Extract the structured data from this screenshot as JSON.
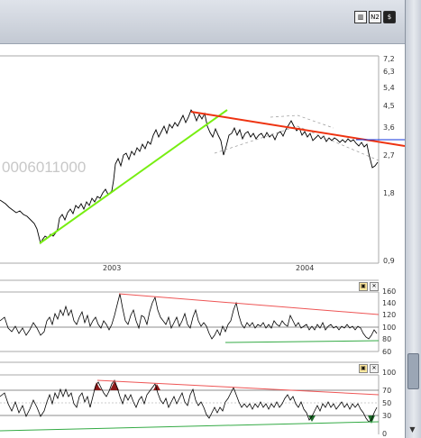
{
  "toolbar": {
    "buttons": [
      {
        "icon": "bar-chart-icon",
        "glyph": "▥"
      },
      {
        "icon": "n2-icon",
        "glyph": "N2"
      },
      {
        "icon": "dollar-icon",
        "glyph": "$"
      }
    ]
  },
  "main_chart": {
    "watermark": "0006011000",
    "price_axis": [
      "7,2",
      "6,3",
      "5,4",
      "4,5",
      "3,6",
      "2,7",
      "1,8",
      "0,9"
    ],
    "time_axis": [
      "2003",
      "2004"
    ],
    "scale": "log"
  },
  "indicator1": {
    "axis": [
      "160",
      "140",
      "120",
      "100",
      "80",
      "60"
    ],
    "buttons": [
      "▣",
      "✕"
    ]
  },
  "indicator2": {
    "axis": [
      "100",
      "70",
      "50",
      "30",
      "0"
    ],
    "buttons": [
      "▣",
      "✕"
    ]
  },
  "colors": {
    "price": "#000000",
    "trend_up": "#77ee11",
    "trend_down": "#ee3311",
    "current_marker": "#1133dd",
    "indicator_resistance": "#ee5555",
    "indicator_support": "#33aa44",
    "overbought": "#8b1a1a",
    "oversold": "#1e6b2a"
  },
  "chart_data": {
    "type": "line",
    "series": [],
    "x": [
      "2003",
      "2004"
    ],
    "ylim": [
      0.9,
      7.2
    ]
  }
}
